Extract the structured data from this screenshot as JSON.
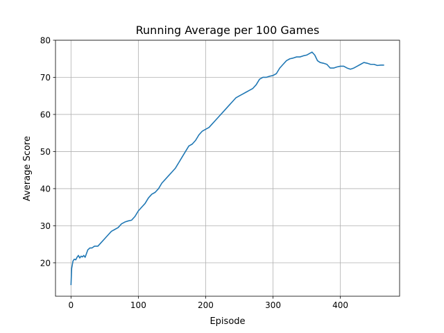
{
  "chart_data": {
    "type": "line",
    "title": "Running Average per 100 Games",
    "xlabel": "Episode",
    "ylabel": "Average Score",
    "xlim": [
      -23,
      488
    ],
    "ylim": [
      11,
      80
    ],
    "xticks": [
      0,
      100,
      200,
      300,
      400
    ],
    "yticks": [
      20,
      30,
      40,
      50,
      60,
      70,
      80
    ],
    "grid": true,
    "line_color": "#1f77b4",
    "series": [
      {
        "name": "",
        "x": [
          0,
          1,
          2,
          3,
          5,
          7,
          9,
          11,
          13,
          15,
          17,
          19,
          21,
          23,
          25,
          28,
          31,
          35,
          40,
          45,
          50,
          55,
          60,
          65,
          70,
          75,
          80,
          85,
          90,
          95,
          100,
          105,
          110,
          115,
          120,
          125,
          130,
          135,
          140,
          145,
          150,
          155,
          160,
          165,
          170,
          175,
          180,
          185,
          190,
          195,
          200,
          205,
          210,
          215,
          220,
          225,
          230,
          235,
          240,
          245,
          250,
          255,
          260,
          265,
          270,
          275,
          280,
          285,
          290,
          295,
          300,
          305,
          310,
          315,
          320,
          325,
          330,
          335,
          340,
          345,
          350,
          355,
          358,
          362,
          366,
          370,
          375,
          380,
          385,
          390,
          395,
          400,
          405,
          410,
          415,
          420,
          425,
          430,
          435,
          440,
          445,
          450,
          455,
          460,
          465
        ],
        "y": [
          14,
          18.5,
          19.5,
          20.5,
          21,
          20.8,
          21.5,
          22,
          21.3,
          21.8,
          21.6,
          22,
          21.5,
          22.5,
          23.5,
          24,
          24,
          24.5,
          24.5,
          25.5,
          26.5,
          27.5,
          28.5,
          29,
          29.5,
          30.5,
          31,
          31.3,
          31.5,
          32.5,
          34,
          35,
          36,
          37.5,
          38.5,
          39,
          40,
          41.5,
          42.5,
          43.5,
          44.5,
          45.5,
          47,
          48.5,
          50,
          51.5,
          52,
          53,
          54.5,
          55.5,
          56,
          56.5,
          57.5,
          58.5,
          59.5,
          60.5,
          61.5,
          62.5,
          63.5,
          64.5,
          65,
          65.5,
          66,
          66.5,
          67,
          68,
          69.5,
          70,
          70,
          70.3,
          70.5,
          71,
          72.5,
          73.5,
          74.5,
          75,
          75.2,
          75.5,
          75.5,
          75.8,
          76,
          76.5,
          76.8,
          76,
          74.5,
          74,
          73.8,
          73.5,
          72.5,
          72.5,
          72.8,
          73,
          73,
          72.5,
          72.2,
          72.5,
          73,
          73.5,
          74,
          73.8,
          73.5,
          73.5,
          73.2,
          73.3,
          73.3
        ]
      }
    ]
  }
}
